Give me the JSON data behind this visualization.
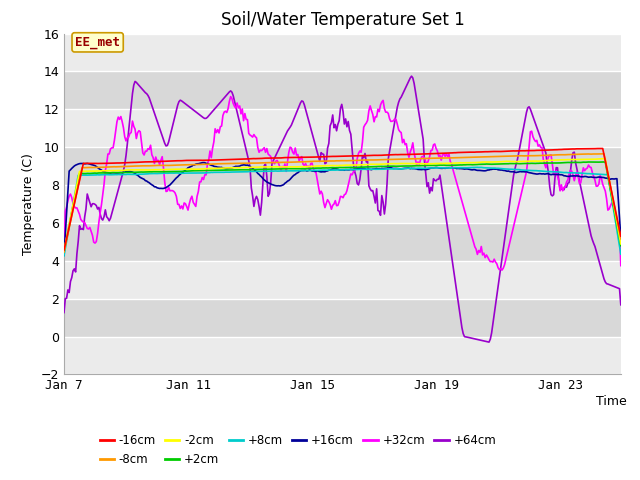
{
  "title": "Soil/Water Temperature Set 1",
  "xlabel": "Time",
  "ylabel": "Temperature (C)",
  "ylim": [
    -2,
    16
  ],
  "yticks": [
    -2,
    0,
    2,
    4,
    6,
    8,
    10,
    12,
    14,
    16
  ],
  "xtick_labels": [
    "Jan 7",
    "Jan 11",
    "Jan 15",
    "Jan 19",
    "Jan 23"
  ],
  "xtick_positions": [
    0,
    96,
    192,
    288,
    384
  ],
  "n_points": 432,
  "series": {
    "-16cm": {
      "color": "#ff0000"
    },
    "-8cm": {
      "color": "#ff9900"
    },
    "-2cm": {
      "color": "#ffff00"
    },
    "+2cm": {
      "color": "#00cc00"
    },
    "+8cm": {
      "color": "#00cccc"
    },
    "+16cm": {
      "color": "#000099"
    },
    "+32cm": {
      "color": "#ff00ff"
    },
    "+64cm": {
      "color": "#9900cc"
    }
  },
  "legend_label": "EE_met",
  "legend_box_color": "#ffffcc",
  "legend_box_edgecolor": "#cc9900",
  "plot_bg_light": "#ebebeb",
  "plot_bg_dark": "#d8d8d8",
  "line_width": 1.2,
  "title_fontsize": 12,
  "label_fontsize": 9,
  "tick_fontsize": 9
}
